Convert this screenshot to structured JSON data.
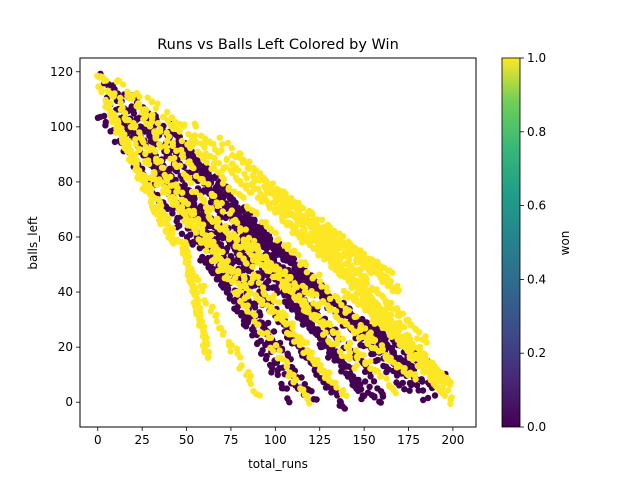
{
  "chart_data": {
    "type": "scatter",
    "title": "Runs vs Balls Left Colored by Win",
    "xlabel": "total_runs",
    "ylabel": "balls_left",
    "xlim": [
      -10,
      213
    ],
    "ylim": [
      -9,
      125
    ],
    "xticks": [
      "0",
      "25",
      "50",
      "75",
      "100",
      "125",
      "150",
      "175",
      "200"
    ],
    "yticks": [
      "0",
      "20",
      "40",
      "60",
      "80",
      "100",
      "120"
    ],
    "grid": false,
    "colorbar": {
      "label": "won",
      "min": 0,
      "max": 1,
      "ticks": [
        "0.0",
        "0.2",
        "0.4",
        "0.6",
        "0.8",
        "1.0"
      ],
      "low_color": "#440154",
      "high_color": "#fde725"
    },
    "series": [
      {
        "value": 0,
        "color": "#440154",
        "trajectories": [
          {
            "start": [
              3,
              118
            ],
            "end": [
              108,
              1
            ]
          },
          {
            "start": [
              8,
              115
            ],
            "end": [
              122,
              1
            ]
          },
          {
            "start": [
              14,
              112
            ],
            "end": [
              135,
              1
            ]
          },
          {
            "start": [
              0,
              105
            ],
            "end": [
              115,
              3
            ]
          },
          {
            "start": [
              20,
              110
            ],
            "end": [
              150,
              2
            ]
          },
          {
            "start": [
              30,
              105
            ],
            "end": [
              162,
              3
            ]
          },
          {
            "start": [
              5,
              110
            ],
            "end": [
              100,
              20
            ]
          },
          {
            "start": [
              45,
              95
            ],
            "end": [
              175,
              4
            ]
          },
          {
            "start": [
              55,
              88
            ],
            "end": [
              185,
              1
            ]
          },
          {
            "start": [
              60,
              80
            ],
            "end": [
              150,
              3
            ]
          },
          {
            "start": [
              35,
              85
            ],
            "end": [
              160,
              0
            ]
          },
          {
            "start": [
              70,
              72
            ],
            "end": [
              178,
              12
            ]
          },
          {
            "start": [
              85,
              65
            ],
            "end": [
              190,
              3
            ]
          },
          {
            "start": [
              100,
              50
            ],
            "end": [
              195,
              10
            ]
          },
          {
            "start": [
              25,
              95
            ],
            "end": [
              140,
              -2
            ]
          },
          {
            "start": [
              40,
              100
            ],
            "end": [
              130,
              25
            ]
          }
        ]
      },
      {
        "value": 1,
        "color": "#fde725",
        "trajectories": [
          {
            "start": [
              0,
              120
            ],
            "end": [
              85,
              38
            ]
          },
          {
            "start": [
              0,
              115
            ],
            "end": [
              90,
              2
            ]
          },
          {
            "start": [
              10,
              118
            ],
            "end": [
              130,
              8
            ]
          },
          {
            "start": [
              18,
              113
            ],
            "end": [
              145,
              12
            ]
          },
          {
            "start": [
              28,
              110
            ],
            "end": [
              160,
              20
            ]
          },
          {
            "start": [
              40,
              104
            ],
            "end": [
              175,
              25
            ]
          },
          {
            "start": [
              55,
              100
            ],
            "end": [
              190,
              12
            ]
          },
          {
            "start": [
              70,
              95
            ],
            "end": [
              200,
              6
            ]
          },
          {
            "start": [
              80,
              90
            ],
            "end": [
              200,
              0
            ]
          },
          {
            "start": [
              90,
              82
            ],
            "end": [
              165,
              46
            ]
          },
          {
            "start": [
              100,
              78
            ],
            "end": [
              185,
              22
            ]
          },
          {
            "start": [
              110,
              72
            ],
            "end": [
              195,
              3
            ]
          },
          {
            "start": [
              120,
              65
            ],
            "end": [
              170,
              40
            ]
          },
          {
            "start": [
              48,
              58
            ],
            "end": [
              62,
              17
            ]
          },
          {
            "start": [
              5,
              108
            ],
            "end": [
              42,
              58
            ]
          },
          {
            "start": [
              20,
              95
            ],
            "end": [
              120,
              0
            ]
          },
          {
            "start": [
              30,
              82
            ],
            "end": [
              140,
              2
            ]
          },
          {
            "start": [
              60,
              70
            ],
            "end": [
              168,
              4
            ]
          },
          {
            "start": [
              75,
              62
            ],
            "end": [
              180,
              8
            ]
          },
          {
            "start": [
              140,
              40
            ],
            "end": [
              198,
              6
            ]
          }
        ]
      }
    ]
  }
}
